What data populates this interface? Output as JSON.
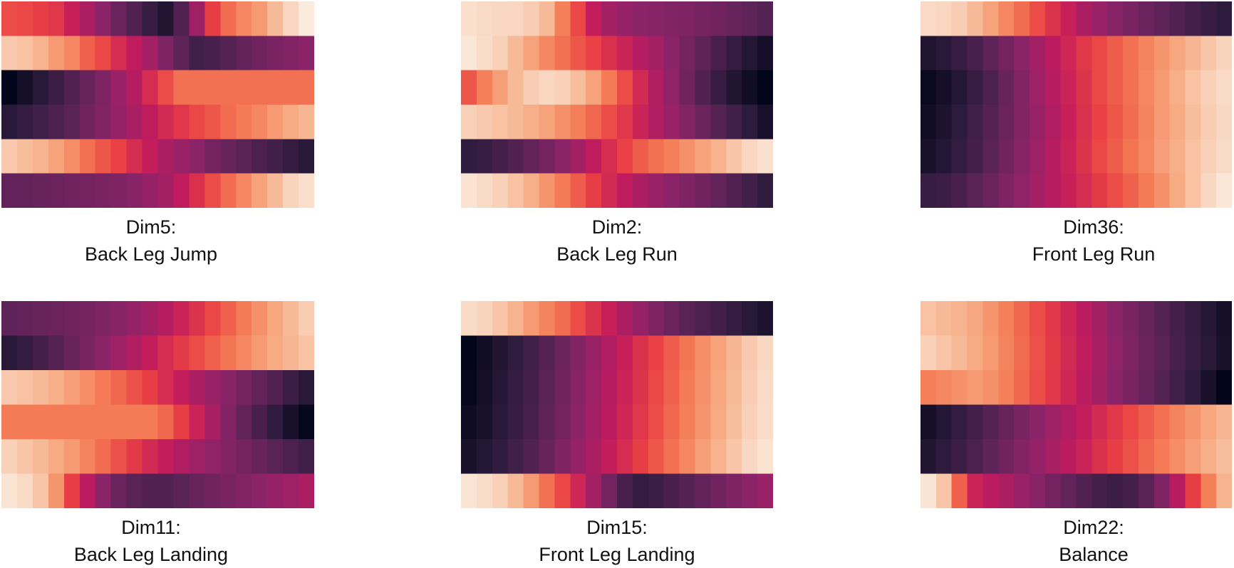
{
  "colormap": "rocket",
  "colormap_stops": [
    "#03051a",
    "#2c1b3c",
    "#5a2357",
    "#8d2369",
    "#c11b5d",
    "#e93f44",
    "#f47a54",
    "#f6aa82",
    "#f9d4bd",
    "#faebdd"
  ],
  "chart_data": [
    {
      "type": "heatmap",
      "title_line1": "Dim5:",
      "title_line2": "Back Leg Jump",
      "rows": 6,
      "cols": 20,
      "values": [
        [
          0.58,
          0.57,
          0.55,
          0.53,
          0.46,
          0.4,
          0.33,
          0.26,
          0.2,
          0.14,
          0.08,
          0.2,
          0.37,
          0.55,
          0.64,
          0.7,
          0.74,
          0.82,
          0.9,
          1.0
        ],
        [
          0.86,
          0.84,
          0.8,
          0.74,
          0.7,
          0.62,
          0.57,
          0.5,
          0.44,
          0.38,
          0.3,
          0.23,
          0.16,
          0.18,
          0.21,
          0.24,
          0.27,
          0.29,
          0.31,
          0.33
        ],
        [
          0.0,
          0.05,
          0.1,
          0.15,
          0.2,
          0.25,
          0.3,
          0.36,
          0.42,
          0.5,
          0.58,
          0.65,
          0.65,
          0.65,
          0.65,
          0.65,
          0.65,
          0.65,
          0.65,
          0.65
        ],
        [
          0.1,
          0.13,
          0.16,
          0.19,
          0.22,
          0.27,
          0.31,
          0.35,
          0.39,
          0.44,
          0.49,
          0.53,
          0.57,
          0.6,
          0.64,
          0.67,
          0.7,
          0.74,
          0.78,
          0.81
        ],
        [
          0.86,
          0.83,
          0.8,
          0.76,
          0.71,
          0.65,
          0.6,
          0.56,
          0.5,
          0.45,
          0.4,
          0.36,
          0.33,
          0.28,
          0.25,
          0.22,
          0.19,
          0.16,
          0.13,
          0.1
        ],
        [
          0.24,
          0.24,
          0.25,
          0.26,
          0.27,
          0.28,
          0.29,
          0.3,
          0.32,
          0.35,
          0.38,
          0.44,
          0.51,
          0.58,
          0.64,
          0.7,
          0.76,
          0.82,
          0.89,
          0.94
        ]
      ]
    },
    {
      "type": "heatmap",
      "title_line1": "Dim2:",
      "title_line2": "Back Leg Run",
      "rows": 6,
      "cols": 20,
      "values": [
        [
          0.94,
          0.92,
          0.91,
          0.9,
          0.87,
          0.82,
          0.68,
          0.57,
          0.45,
          0.38,
          0.35,
          0.33,
          0.32,
          0.31,
          0.3,
          0.28,
          0.27,
          0.25,
          0.23,
          0.21
        ],
        [
          0.98,
          0.93,
          0.88,
          0.82,
          0.76,
          0.7,
          0.65,
          0.6,
          0.56,
          0.51,
          0.47,
          0.42,
          0.38,
          0.33,
          0.28,
          0.23,
          0.18,
          0.13,
          0.09,
          0.05
        ],
        [
          0.6,
          0.68,
          0.75,
          0.82,
          0.87,
          0.9,
          0.88,
          0.83,
          0.76,
          0.67,
          0.58,
          0.49,
          0.41,
          0.34,
          0.27,
          0.2,
          0.14,
          0.08,
          0.04,
          0.0
        ],
        [
          0.88,
          0.86,
          0.84,
          0.82,
          0.79,
          0.76,
          0.72,
          0.68,
          0.63,
          0.58,
          0.53,
          0.47,
          0.41,
          0.36,
          0.31,
          0.26,
          0.21,
          0.16,
          0.11,
          0.06
        ],
        [
          0.12,
          0.14,
          0.17,
          0.2,
          0.24,
          0.28,
          0.33,
          0.38,
          0.44,
          0.5,
          0.56,
          0.61,
          0.65,
          0.68,
          0.72,
          0.76,
          0.8,
          0.85,
          0.9,
          0.95
        ],
        [
          0.96,
          0.92,
          0.88,
          0.84,
          0.79,
          0.73,
          0.67,
          0.61,
          0.55,
          0.49,
          0.44,
          0.4,
          0.36,
          0.33,
          0.3,
          0.27,
          0.24,
          0.2,
          0.16,
          0.12
        ]
      ]
    },
    {
      "type": "heatmap",
      "title_line1": "Dim36:",
      "title_line2": "Front Leg Run",
      "rows": 6,
      "cols": 20,
      "values": [
        [
          0.92,
          0.9,
          0.87,
          0.82,
          0.76,
          0.7,
          0.64,
          0.58,
          0.52,
          0.46,
          0.4,
          0.36,
          0.32,
          0.29,
          0.26,
          0.23,
          0.2,
          0.17,
          0.14,
          0.11
        ],
        [
          0.08,
          0.1,
          0.14,
          0.18,
          0.23,
          0.28,
          0.33,
          0.38,
          0.43,
          0.48,
          0.53,
          0.57,
          0.61,
          0.65,
          0.69,
          0.73,
          0.77,
          0.81,
          0.85,
          0.89
        ],
        [
          0.02,
          0.05,
          0.09,
          0.14,
          0.19,
          0.25,
          0.31,
          0.37,
          0.42,
          0.47,
          0.52,
          0.57,
          0.61,
          0.65,
          0.7,
          0.74,
          0.79,
          0.84,
          0.88,
          0.92
        ],
        [
          0.04,
          0.07,
          0.11,
          0.16,
          0.21,
          0.26,
          0.31,
          0.36,
          0.41,
          0.46,
          0.51,
          0.56,
          0.6,
          0.64,
          0.69,
          0.74,
          0.78,
          0.83,
          0.87,
          0.91
        ],
        [
          0.06,
          0.09,
          0.13,
          0.17,
          0.22,
          0.27,
          0.32,
          0.37,
          0.42,
          0.47,
          0.52,
          0.57,
          0.61,
          0.66,
          0.7,
          0.75,
          0.79,
          0.84,
          0.88,
          0.92
        ],
        [
          0.14,
          0.15,
          0.18,
          0.22,
          0.26,
          0.3,
          0.34,
          0.38,
          0.42,
          0.46,
          0.5,
          0.54,
          0.58,
          0.62,
          0.67,
          0.72,
          0.78,
          0.84,
          0.91,
          0.98
        ]
      ]
    },
    {
      "type": "heatmap",
      "title_line1": "Dim11:",
      "title_line2": "Back Leg Landing",
      "rows": 6,
      "cols": 20,
      "values": [
        [
          0.23,
          0.24,
          0.25,
          0.26,
          0.27,
          0.28,
          0.3,
          0.32,
          0.35,
          0.38,
          0.42,
          0.47,
          0.52,
          0.57,
          0.62,
          0.67,
          0.72,
          0.77,
          0.82,
          0.87
        ],
        [
          0.1,
          0.13,
          0.17,
          0.21,
          0.25,
          0.29,
          0.33,
          0.37,
          0.41,
          0.45,
          0.5,
          0.54,
          0.58,
          0.62,
          0.66,
          0.7,
          0.74,
          0.78,
          0.81,
          0.84
        ],
        [
          0.86,
          0.84,
          0.82,
          0.79,
          0.75,
          0.71,
          0.67,
          0.63,
          0.59,
          0.55,
          0.5,
          0.45,
          0.4,
          0.36,
          0.32,
          0.28,
          0.24,
          0.2,
          0.15,
          0.1
        ],
        [
          0.67,
          0.67,
          0.67,
          0.67,
          0.67,
          0.67,
          0.67,
          0.67,
          0.67,
          0.67,
          0.63,
          0.55,
          0.47,
          0.39,
          0.31,
          0.24,
          0.18,
          0.12,
          0.06,
          0.01
        ],
        [
          0.88,
          0.85,
          0.82,
          0.78,
          0.74,
          0.69,
          0.64,
          0.59,
          0.54,
          0.49,
          0.45,
          0.41,
          0.37,
          0.34,
          0.31,
          0.28,
          0.25,
          0.22,
          0.19,
          0.16
        ],
        [
          0.97,
          0.92,
          0.85,
          0.73,
          0.55,
          0.43,
          0.33,
          0.26,
          0.22,
          0.2,
          0.2,
          0.22,
          0.25,
          0.27,
          0.29,
          0.31,
          0.33,
          0.35,
          0.37,
          0.4
        ]
      ]
    },
    {
      "type": "heatmap",
      "title_line1": "Dim15:",
      "title_line2": "Front Leg Landing",
      "rows": 6,
      "cols": 20,
      "values": [
        [
          0.92,
          0.89,
          0.85,
          0.8,
          0.74,
          0.69,
          0.64,
          0.58,
          0.52,
          0.46,
          0.4,
          0.35,
          0.3,
          0.26,
          0.22,
          0.19,
          0.16,
          0.13,
          0.1,
          0.07
        ],
        [
          0.0,
          0.04,
          0.08,
          0.12,
          0.16,
          0.21,
          0.26,
          0.31,
          0.36,
          0.41,
          0.46,
          0.51,
          0.56,
          0.61,
          0.66,
          0.71,
          0.76,
          0.81,
          0.86,
          0.91
        ],
        [
          0.01,
          0.05,
          0.09,
          0.13,
          0.17,
          0.22,
          0.27,
          0.32,
          0.37,
          0.42,
          0.47,
          0.52,
          0.57,
          0.62,
          0.67,
          0.72,
          0.77,
          0.82,
          0.87,
          0.92
        ],
        [
          0.03,
          0.06,
          0.1,
          0.14,
          0.18,
          0.23,
          0.28,
          0.33,
          0.38,
          0.43,
          0.48,
          0.53,
          0.58,
          0.63,
          0.68,
          0.73,
          0.78,
          0.83,
          0.88,
          0.93
        ],
        [
          0.06,
          0.09,
          0.12,
          0.16,
          0.2,
          0.25,
          0.3,
          0.35,
          0.4,
          0.45,
          0.5,
          0.55,
          0.6,
          0.65,
          0.7,
          0.75,
          0.8,
          0.85,
          0.91,
          0.96
        ],
        [
          0.97,
          0.93,
          0.88,
          0.82,
          0.74,
          0.65,
          0.57,
          0.48,
          0.38,
          0.28,
          0.18,
          0.13,
          0.15,
          0.18,
          0.21,
          0.24,
          0.27,
          0.3,
          0.33,
          0.36
        ]
      ]
    },
    {
      "type": "heatmap",
      "title_line1": "Dim22:",
      "title_line2": "Balance",
      "rows": 6,
      "cols": 20,
      "values": [
        [
          0.84,
          0.82,
          0.8,
          0.77,
          0.73,
          0.68,
          0.63,
          0.58,
          0.53,
          0.48,
          0.43,
          0.38,
          0.33,
          0.29,
          0.25,
          0.21,
          0.17,
          0.13,
          0.09,
          0.05
        ],
        [
          0.88,
          0.85,
          0.82,
          0.78,
          0.74,
          0.69,
          0.64,
          0.59,
          0.54,
          0.49,
          0.44,
          0.39,
          0.34,
          0.3,
          0.26,
          0.22,
          0.18,
          0.14,
          0.1,
          0.06
        ],
        [
          0.68,
          0.7,
          0.72,
          0.74,
          0.72,
          0.68,
          0.63,
          0.58,
          0.53,
          0.48,
          0.43,
          0.38,
          0.33,
          0.29,
          0.25,
          0.21,
          0.16,
          0.11,
          0.06,
          0.0
        ],
        [
          0.05,
          0.09,
          0.13,
          0.17,
          0.21,
          0.25,
          0.29,
          0.33,
          0.37,
          0.41,
          0.45,
          0.49,
          0.53,
          0.57,
          0.61,
          0.65,
          0.69,
          0.73,
          0.77,
          0.81
        ],
        [
          0.08,
          0.11,
          0.15,
          0.19,
          0.23,
          0.27,
          0.31,
          0.35,
          0.39,
          0.43,
          0.47,
          0.51,
          0.55,
          0.59,
          0.63,
          0.67,
          0.71,
          0.75,
          0.79,
          0.83
        ],
        [
          0.97,
          0.85,
          0.62,
          0.47,
          0.43,
          0.4,
          0.36,
          0.32,
          0.28,
          0.24,
          0.2,
          0.17,
          0.15,
          0.17,
          0.22,
          0.3,
          0.42,
          0.55,
          0.68,
          0.8
        ]
      ]
    }
  ]
}
